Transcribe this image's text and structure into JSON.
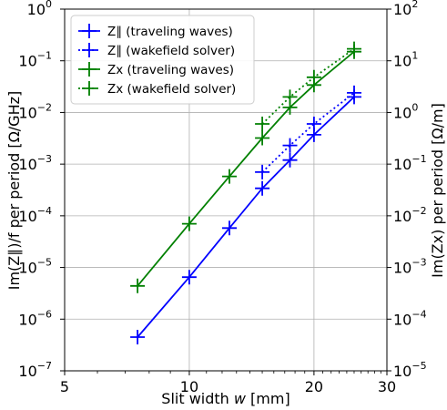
{
  "chart_data": {
    "type": "line",
    "title": "",
    "xlabel_prefix": "Slit width ",
    "xlabel_var": "w",
    "xlabel_suffix": " [mm]",
    "ylabel_left": "Im(Z∥)/f per period [Ω/GHz]",
    "ylabel_right": "Im(Zx) per period [Ω/m]",
    "xscale": "log",
    "yscale": "log",
    "xlim": [
      5,
      30
    ],
    "ylim_left": [
      1e-07,
      1
    ],
    "ylim_right": [
      1e-05,
      100
    ],
    "x_ticks": [
      5,
      10,
      20,
      30
    ],
    "x_tick_labels": [
      "5",
      "10",
      "20",
      "30"
    ],
    "y_left_exponents": [
      -7,
      -6,
      -5,
      -4,
      -3,
      -2,
      -1,
      0
    ],
    "y_right_exponents": [
      -5,
      -4,
      -3,
      -2,
      -1,
      0,
      1,
      2
    ],
    "grid": true,
    "legend_position": "top-left",
    "series": [
      {
        "name": "Z∥ (traveling waves)",
        "axis": "left",
        "color": "#0000ff",
        "linestyle": "solid",
        "x": [
          7.5,
          10,
          12.5,
          15,
          17.5,
          20,
          25
        ],
        "y": [
          4.5e-07,
          6.5e-06,
          5.8e-05,
          0.00034,
          0.0012,
          0.0037,
          0.02
        ]
      },
      {
        "name": "Z∥ (wakefield solver)",
        "axis": "left",
        "color": "#0000ff",
        "linestyle": "dotted",
        "x": [
          15,
          17.5,
          20,
          25
        ],
        "y": [
          0.0007,
          0.0023,
          0.006,
          0.024
        ]
      },
      {
        "name": "Zx (traveling waves)",
        "axis": "right",
        "color": "#008000",
        "linestyle": "solid",
        "x": [
          7.5,
          10,
          12.5,
          15,
          17.5,
          20,
          25
        ],
        "y": [
          0.00044,
          0.007,
          0.058,
          0.32,
          1.25,
          3.4,
          15
        ]
      },
      {
        "name": "Zx (wakefield solver)",
        "axis": "right",
        "color": "#008000",
        "linestyle": "dotted",
        "x": [
          15,
          17.5,
          20,
          25
        ],
        "y": [
          0.6,
          2.0,
          4.8,
          17
        ]
      }
    ]
  }
}
